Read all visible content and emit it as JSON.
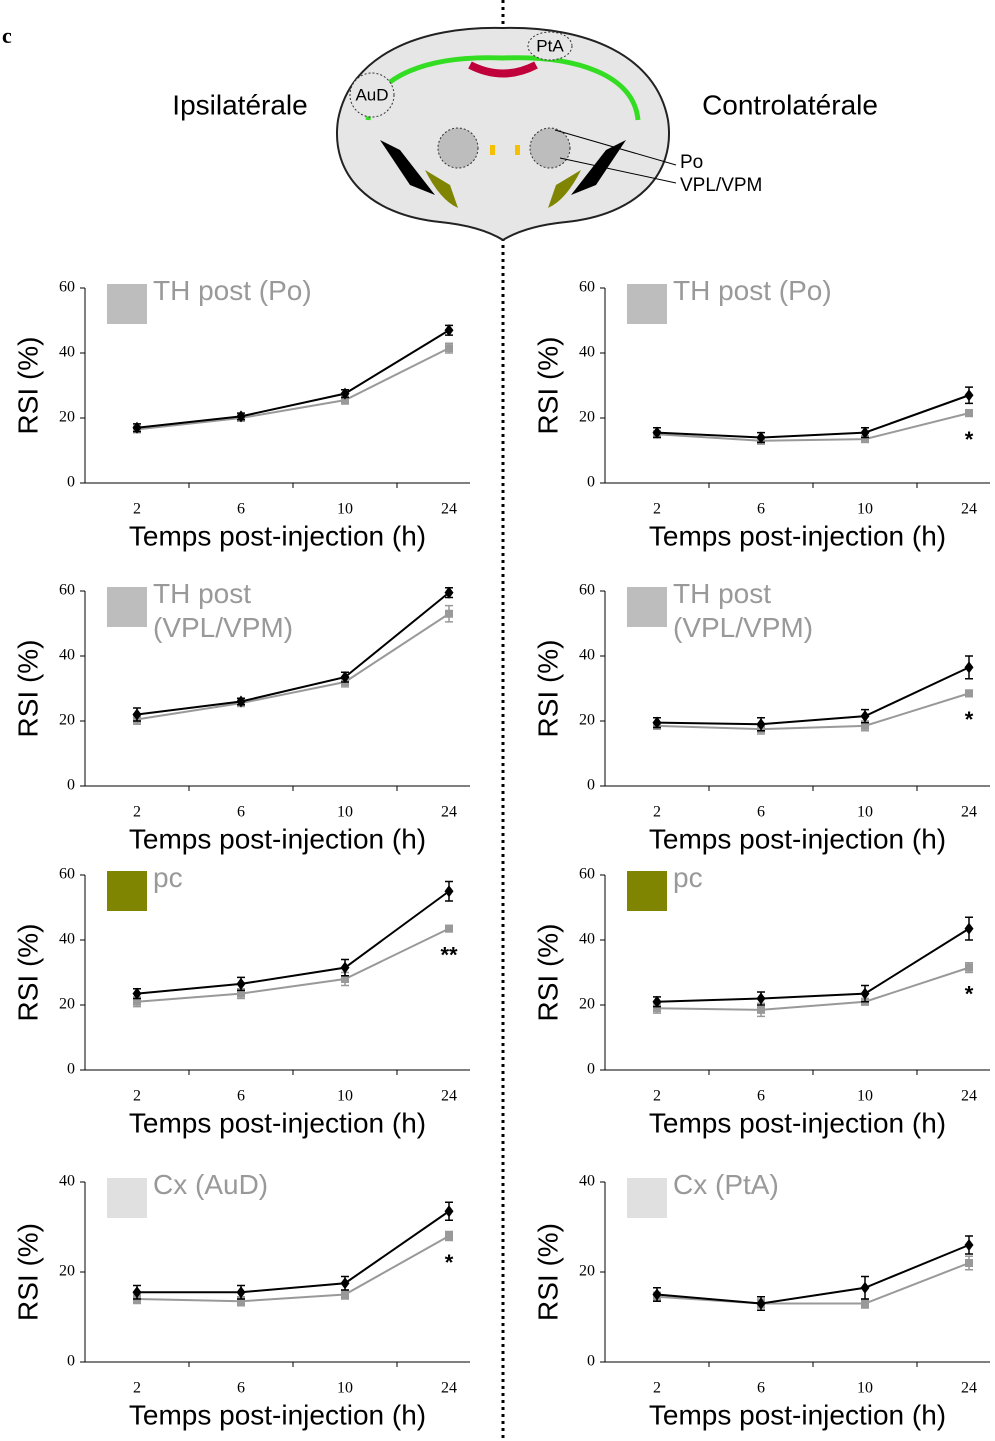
{
  "figure": {
    "panel_label": "c",
    "left_label": "Ipsilatérale",
    "right_label": "Controlatérale",
    "region_po": "Po",
    "region_vpl": "VPL/VPM",
    "region_aud": "AuD",
    "region_pta": "PtA"
  },
  "chart_data": [
    {
      "type": "line",
      "legend_label": "TH post (Po)",
      "legend_color": "#bdbdbd",
      "xlabel": "Temps post-injection (h)",
      "ylabel": "RSI (%)",
      "categories": [
        "2",
        "6",
        "10",
        "24"
      ],
      "ylim": [
        0,
        60
      ],
      "yticks": [
        0,
        20,
        40,
        60
      ],
      "series": [
        {
          "color": "#000000",
          "values": [
            17,
            20.5,
            27.5,
            47
          ],
          "errors": [
            1.2,
            1,
            1.2,
            1.5
          ]
        },
        {
          "color": "#999999",
          "values": [
            16.5,
            20,
            25.5,
            41.5
          ],
          "errors": [
            1,
            1,
            1.2,
            1.5
          ]
        }
      ],
      "annotations": []
    },
    {
      "type": "line",
      "legend_label": "TH post (Po)",
      "legend_color": "#bdbdbd",
      "xlabel": "Temps post-injection (h)",
      "ylabel": "RSI (%)",
      "categories": [
        "2",
        "6",
        "10",
        "24"
      ],
      "ylim": [
        0,
        60
      ],
      "yticks": [
        0,
        20,
        40,
        60
      ],
      "series": [
        {
          "color": "#000000",
          "values": [
            15.5,
            14,
            15.5,
            27
          ],
          "errors": [
            1.5,
            1.5,
            1.5,
            2.5
          ]
        },
        {
          "color": "#999999",
          "values": [
            15,
            13,
            13.5,
            21.5
          ],
          "errors": [
            1,
            1,
            1,
            1
          ]
        }
      ],
      "annotations": [
        {
          "text": "*",
          "x": "24"
        }
      ]
    },
    {
      "type": "line",
      "legend_label": "TH post (VPL/VPM)",
      "legend_color": "#bdbdbd",
      "xlabel": "Temps post-injection (h)",
      "ylabel": "RSI (%)",
      "categories": [
        "2",
        "6",
        "10",
        "24"
      ],
      "ylim": [
        0,
        60
      ],
      "yticks": [
        0,
        20,
        40,
        60
      ],
      "series": [
        {
          "color": "#000000",
          "values": [
            22,
            26,
            33.5,
            59.5
          ],
          "errors": [
            2,
            1,
            1.5,
            1.5
          ]
        },
        {
          "color": "#999999",
          "values": [
            20.5,
            25.5,
            32,
            53
          ],
          "errors": [
            1.5,
            1,
            1.5,
            2.5
          ]
        }
      ],
      "annotations": []
    },
    {
      "type": "line",
      "legend_label": "TH post (VPL/VPM)",
      "legend_color": "#bdbdbd",
      "xlabel": "Temps post-injection (h)",
      "ylabel": "RSI (%)",
      "categories": [
        "2",
        "6",
        "10",
        "24"
      ],
      "ylim": [
        0,
        60
      ],
      "yticks": [
        0,
        20,
        40,
        60
      ],
      "series": [
        {
          "color": "#000000",
          "values": [
            19.5,
            19,
            21.5,
            36.5
          ],
          "errors": [
            1.5,
            2,
            2,
            3.5
          ]
        },
        {
          "color": "#999999",
          "values": [
            18.5,
            17.5,
            18.5,
            28.5
          ],
          "errors": [
            1,
            1.5,
            1.5,
            1
          ]
        }
      ],
      "annotations": [
        {
          "text": "*",
          "x": "24"
        }
      ]
    },
    {
      "type": "line",
      "legend_label": "pc",
      "legend_color": "#7f8500",
      "xlabel": "Temps post-injection (h)",
      "ylabel": "RSI (%)",
      "categories": [
        "2",
        "6",
        "10",
        "24"
      ],
      "ylim": [
        0,
        60
      ],
      "yticks": [
        0,
        20,
        40,
        60
      ],
      "series": [
        {
          "color": "#000000",
          "values": [
            23.5,
            26.5,
            31.5,
            55
          ],
          "errors": [
            1.5,
            2,
            2.5,
            3
          ]
        },
        {
          "color": "#999999",
          "values": [
            21,
            23.5,
            28,
            43.5
          ],
          "errors": [
            1.5,
            1.5,
            2,
            1
          ]
        }
      ],
      "annotations": [
        {
          "text": "**",
          "x": "24"
        }
      ]
    },
    {
      "type": "line",
      "legend_label": "pc",
      "legend_color": "#7f8500",
      "xlabel": "Temps post-injection (h)",
      "ylabel": "RSI (%)",
      "categories": [
        "2",
        "6",
        "10",
        "24"
      ],
      "ylim": [
        0,
        60
      ],
      "yticks": [
        0,
        20,
        40,
        60
      ],
      "series": [
        {
          "color": "#000000",
          "values": [
            21,
            22,
            23.5,
            43.5
          ],
          "errors": [
            1.5,
            2,
            2.5,
            3.5
          ]
        },
        {
          "color": "#999999",
          "values": [
            19,
            18.5,
            21,
            31.5
          ],
          "errors": [
            1.5,
            2,
            1,
            1.5
          ]
        }
      ],
      "annotations": [
        {
          "text": "*",
          "x": "24"
        }
      ]
    },
    {
      "type": "line",
      "legend_label": "Cx (AuD)",
      "legend_color": "#e0e0e0",
      "xlabel": "Temps post-injection (h)",
      "ylabel": "RSI (%)",
      "categories": [
        "2",
        "6",
        "10",
        "24"
      ],
      "ylim": [
        0,
        40
      ],
      "yticks": [
        0,
        20,
        40
      ],
      "series": [
        {
          "color": "#000000",
          "values": [
            15.5,
            15.5,
            17.5,
            33.5
          ],
          "errors": [
            1.5,
            1.5,
            1.5,
            2
          ]
        },
        {
          "color": "#999999",
          "values": [
            14,
            13.5,
            15,
            28
          ],
          "errors": [
            1,
            1,
            1,
            1
          ]
        }
      ],
      "annotations": [
        {
          "text": "*",
          "x": "24"
        }
      ]
    },
    {
      "type": "line",
      "legend_label": "Cx (PtA)",
      "legend_color": "#e0e0e0",
      "xlabel": "Temps post-injection (h)",
      "ylabel": "RSI (%)",
      "categories": [
        "2",
        "6",
        "10",
        "24"
      ],
      "ylim": [
        0,
        40
      ],
      "yticks": [
        0,
        20,
        40
      ],
      "series": [
        {
          "color": "#000000",
          "values": [
            15,
            13,
            16.5,
            26
          ],
          "errors": [
            1.5,
            1.5,
            2.5,
            2
          ]
        },
        {
          "color": "#999999",
          "values": [
            14.5,
            13,
            13,
            22
          ],
          "errors": [
            1,
            1,
            1,
            1.5
          ]
        }
      ],
      "annotations": []
    }
  ]
}
